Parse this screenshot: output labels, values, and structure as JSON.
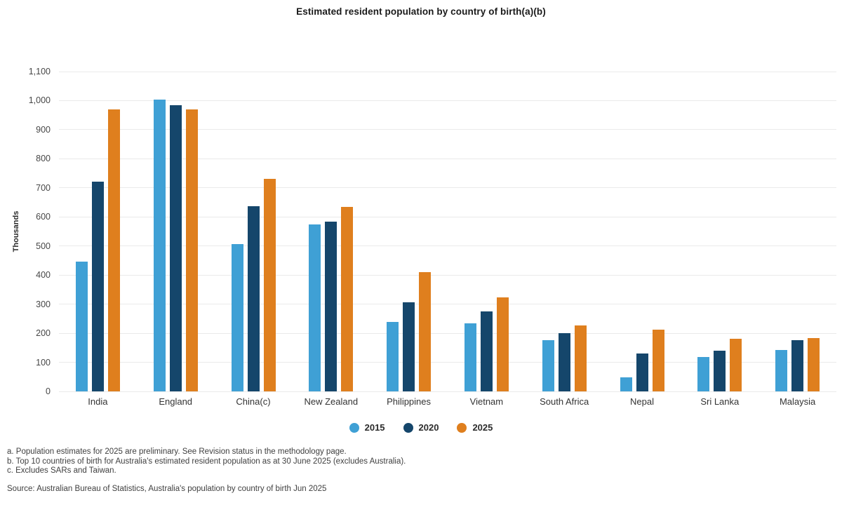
{
  "title": "Estimated resident population by country of birth(a)(b)",
  "chart_data": {
    "type": "bar",
    "categories": [
      "India",
      "England",
      "China(c)",
      "New Zealand",
      "Philippines",
      "Vietnam",
      "South Africa",
      "Nepal",
      "Sri Lanka",
      "Malaysia"
    ],
    "series": [
      {
        "name": "2015",
        "color": "#3fa0d5",
        "values": [
          447,
          1003,
          506,
          573,
          239,
          233,
          176,
          48,
          117,
          142
        ]
      },
      {
        "name": "2020",
        "color": "#15466b",
        "values": [
          722,
          985,
          637,
          583,
          306,
          274,
          200,
          131,
          141,
          175
        ]
      },
      {
        "name": "2025",
        "color": "#df7f1e",
        "values": [
          970,
          970,
          730,
          634,
          409,
          323,
          227,
          212,
          182,
          183
        ]
      }
    ],
    "title": "Estimated resident population by country of birth(a)(b)",
    "xlabel": "",
    "ylabel": "Thousands",
    "y_axis": {
      "label": "Thousands",
      "min": 0,
      "max": 1100,
      "tick_step": 100,
      "tick_labels": [
        "0",
        "100",
        "200",
        "300",
        "400",
        "500",
        "600",
        "700",
        "800",
        "900",
        "1,000",
        "1,100"
      ]
    },
    "grid": true,
    "legend_position": "bottom"
  },
  "footnotes": [
    "a. Population estimates for 2025 are preliminary. See Revision status in the methodology page.",
    "b. Top 10 countries of birth for Australia's estimated resident population as at 30 June 2025 (excludes Australia).",
    "c. Excludes SARs and Taiwan."
  ],
  "source": "Source: Australian Bureau of Statistics, Australia's population by country of birth Jun 2025"
}
